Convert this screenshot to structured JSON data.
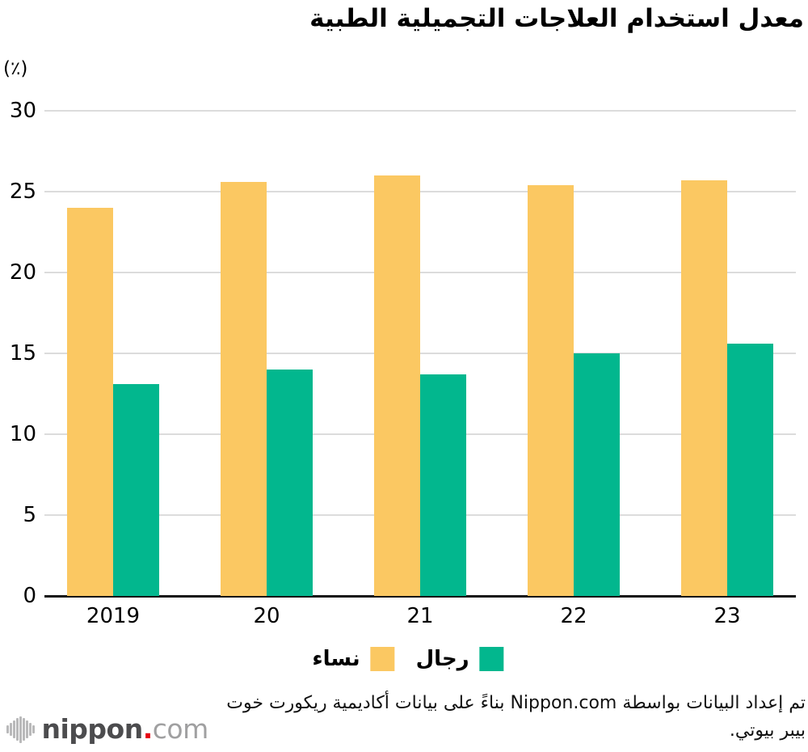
{
  "title": "معدل استخدام العلاجات التجميلية الطبية",
  "unit_label": "(٪)",
  "chart_data": {
    "type": "bar",
    "categories": [
      "2019",
      "20",
      "21",
      "22",
      "23"
    ],
    "series": [
      {
        "name": "نساء",
        "key": "women",
        "color": "#FBC862",
        "values": [
          24.0,
          25.6,
          26.0,
          25.4,
          25.7
        ]
      },
      {
        "name": "رجال",
        "key": "men",
        "color": "#02B78E",
        "values": [
          13.1,
          14.0,
          13.7,
          15.0,
          15.6
        ]
      }
    ],
    "title": "معدل استخدام العلاجات التجميلية الطبية",
    "ylabel": "(٪)",
    "ylim": [
      0,
      30
    ],
    "ytick_step": 5,
    "grid": true,
    "legend_position": "bottom"
  },
  "legend": [
    {
      "label": "رجال",
      "color": "#02B78E"
    },
    {
      "label": "نساء",
      "color": "#FBC862"
    }
  ],
  "footer": {
    "source_text": "تم إعداد البيانات بواسطة Nippon.com بناءً على بيانات أكاديمية ريكورت خوت بيبر بيوتي.",
    "logo": {
      "nippon": "nippon",
      "dot": ".",
      "com": "com"
    }
  },
  "colors": {
    "women_bar": "#FBC862",
    "men_bar": "#02B78E",
    "gridline": "#dcdcdc",
    "axis_line": "#111111",
    "logo_dot_red": "#e60012"
  }
}
